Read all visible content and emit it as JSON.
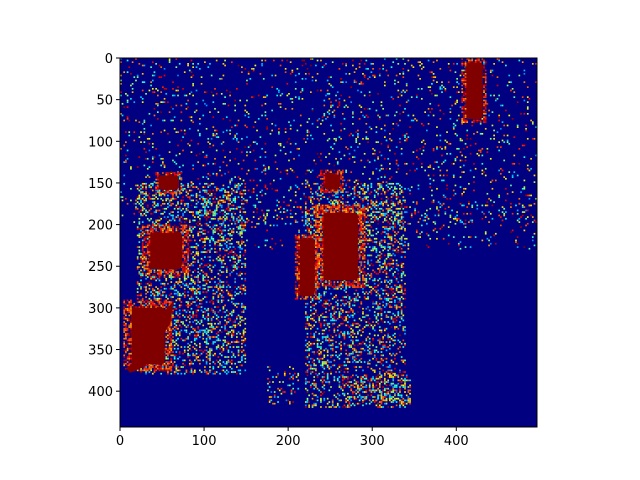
{
  "chart_data": {
    "type": "heatmap",
    "title": "",
    "xlabel": "",
    "ylabel": "",
    "colormap": "jet",
    "xlim": [
      0,
      496
    ],
    "ylim": [
      443,
      0
    ],
    "x_ticks": [
      0,
      100,
      200,
      300,
      400
    ],
    "y_ticks": [
      0,
      50,
      100,
      150,
      200,
      250,
      300,
      350,
      400
    ],
    "x_tick_labels": [
      "0",
      "100",
      "200",
      "300",
      "400"
    ],
    "y_tick_labels": [
      "0",
      "50",
      "100",
      "150",
      "200",
      "250",
      "300",
      "350",
      "400"
    ],
    "background_value": 0,
    "saturated_regions": [
      {
        "name": "head-left",
        "x": [
          42,
          74
        ],
        "y": [
          137,
          162
        ]
      },
      {
        "name": "head-right",
        "x": [
          238,
          266
        ],
        "y": [
          134,
          162
        ]
      },
      {
        "name": "bag",
        "x": [
          208,
          236
        ],
        "y": [
          212,
          290
        ]
      },
      {
        "name": "top-right-figure",
        "x": [
          406,
          436
        ],
        "y": [
          0,
          78
        ]
      },
      {
        "name": "left-leg",
        "x": [
          4,
          62
        ],
        "y": [
          290,
          376
        ]
      },
      {
        "name": "left-torso",
        "x": [
          26,
          82
        ],
        "y": [
          200,
          262
        ]
      },
      {
        "name": "right-torso",
        "x": [
          232,
          292
        ],
        "y": [
          176,
          276
        ]
      }
    ],
    "texture_regions": [
      {
        "name": "background-rows",
        "x": [
          0,
          496
        ],
        "y": [
          0,
          200
        ],
        "density": 0.07
      },
      {
        "name": "left-person-body",
        "x": [
          20,
          150
        ],
        "y": [
          150,
          380
        ],
        "density": 0.3
      },
      {
        "name": "right-person-body",
        "x": [
          220,
          340
        ],
        "y": [
          150,
          420
        ],
        "density": 0.28
      },
      {
        "name": "lower-right-feet",
        "x": [
          280,
          345
        ],
        "y": [
          380,
          415
        ],
        "density": 0.25
      },
      {
        "name": "lower-left-feet",
        "x": [
          175,
          215
        ],
        "y": [
          370,
          415
        ],
        "density": 0.15
      },
      {
        "name": "street-line",
        "x": [
          100,
          496
        ],
        "y": [
          170,
          230
        ],
        "density": 0.06
      }
    ]
  },
  "colors": {
    "background_cell": "#00008f",
    "saturated_cell": "#800000",
    "axis": "#000000"
  }
}
